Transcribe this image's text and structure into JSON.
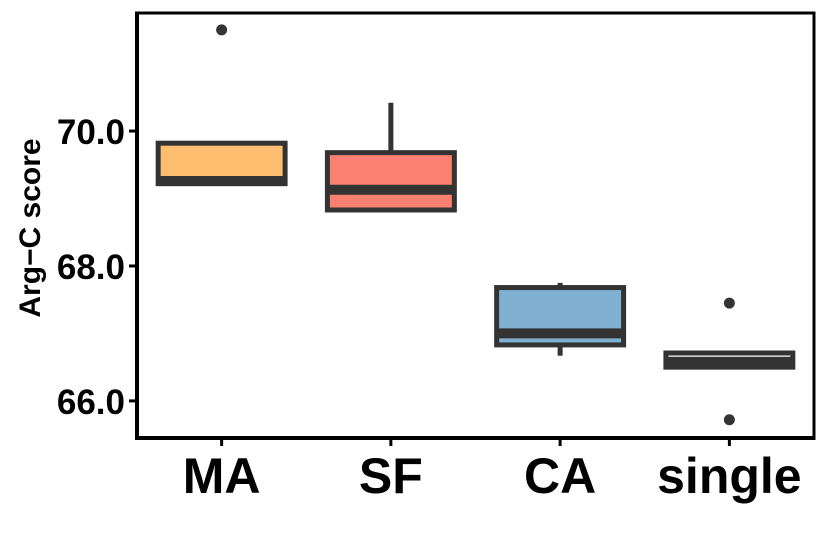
{
  "chart_data": {
    "type": "boxplot",
    "ylabel": "Arg−C score",
    "xlabel": "",
    "title": "",
    "ylim": [
      65.45,
      71.75
    ],
    "yticks": [
      66.0,
      68.0,
      70.0
    ],
    "ytick_labels": [
      "66.0",
      "68.0",
      "70.0"
    ],
    "grid": false,
    "legend": "none",
    "categories": [
      "MA",
      "SF",
      "CA",
      "single"
    ],
    "boxes": [
      {
        "category": "MA",
        "color": "#FDBF6F",
        "whisker_low": 69.22,
        "q1": 69.22,
        "median": 69.26,
        "q3": 69.82,
        "whisker_high": 69.82,
        "outliers": [
          71.5
        ]
      },
      {
        "category": "SF",
        "color": "#FB8072",
        "whisker_low": 68.83,
        "q1": 68.83,
        "median": 69.13,
        "q3": 69.68,
        "whisker_high": 70.42,
        "outliers": []
      },
      {
        "category": "CA",
        "color": "#80B1D3",
        "whisker_low": 66.67,
        "q1": 66.83,
        "median": 67.0,
        "q3": 67.68,
        "whisker_high": 67.75,
        "outliers": []
      },
      {
        "category": "single",
        "color": "#FFFFFF",
        "whisker_low": 66.5,
        "q1": 66.5,
        "median": 66.58,
        "q3": 66.71,
        "whisker_high": 66.71,
        "outliers": [
          67.45,
          65.72
        ]
      }
    ]
  }
}
